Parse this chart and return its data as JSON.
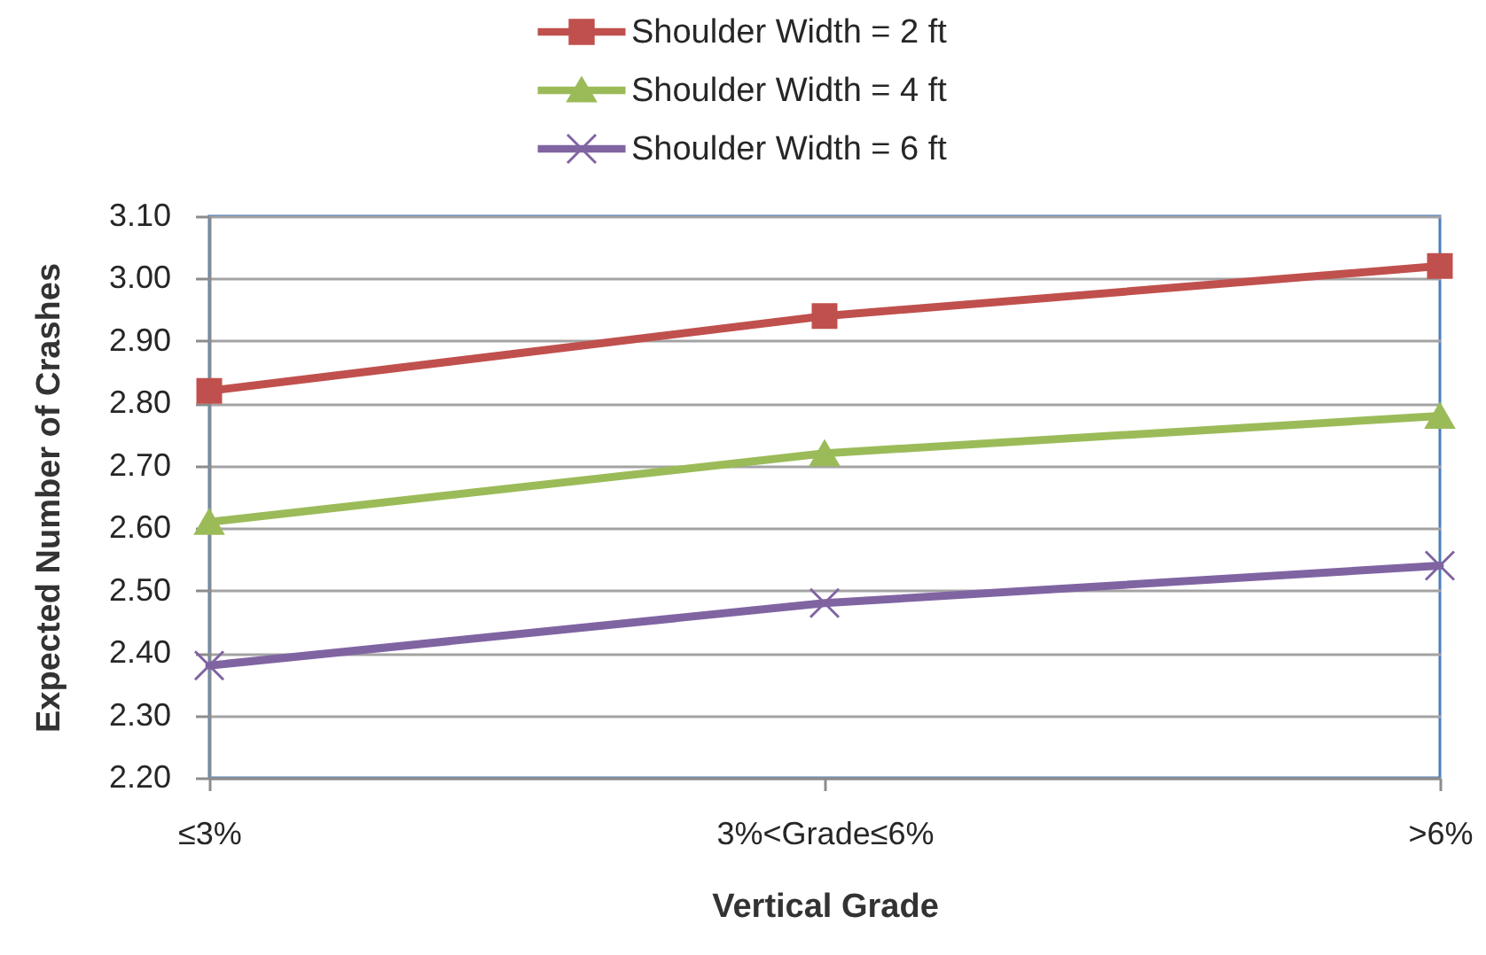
{
  "chart_data": {
    "type": "line",
    "xlabel": "Vertical Grade",
    "ylabel": "Expected Number of Crashes",
    "categories": [
      "≤3%",
      "3%<Grade≤6%",
      ">6%"
    ],
    "series": [
      {
        "name": "Shoulder Width = 2 ft",
        "color": "#c0504d",
        "marker": "square",
        "values": [
          2.82,
          2.94,
          3.02
        ]
      },
      {
        "name": "Shoulder Width = 4 ft",
        "color": "#9bbb59",
        "marker": "triangle",
        "values": [
          2.61,
          2.72,
          2.78
        ]
      },
      {
        "name": "Shoulder Width = 6 ft",
        "color": "#8064a2",
        "marker": "cross",
        "values": [
          2.38,
          2.48,
          2.54
        ]
      }
    ],
    "ylim": [
      2.2,
      3.1
    ],
    "yticks": [
      {
        "value": 2.2,
        "label": "2.20"
      },
      {
        "value": 2.3,
        "label": "2.30"
      },
      {
        "value": 2.4,
        "label": "2.40"
      },
      {
        "value": 2.5,
        "label": "2.50"
      },
      {
        "value": 2.6,
        "label": "2.60"
      },
      {
        "value": 2.7,
        "label": "2.70"
      },
      {
        "value": 2.8,
        "label": "2.80"
      },
      {
        "value": 2.9,
        "label": "2.90"
      },
      {
        "value": 3.0,
        "label": "3.00"
      },
      {
        "value": 3.1,
        "label": "3.10"
      }
    ],
    "grid": "y",
    "legend": "top"
  }
}
